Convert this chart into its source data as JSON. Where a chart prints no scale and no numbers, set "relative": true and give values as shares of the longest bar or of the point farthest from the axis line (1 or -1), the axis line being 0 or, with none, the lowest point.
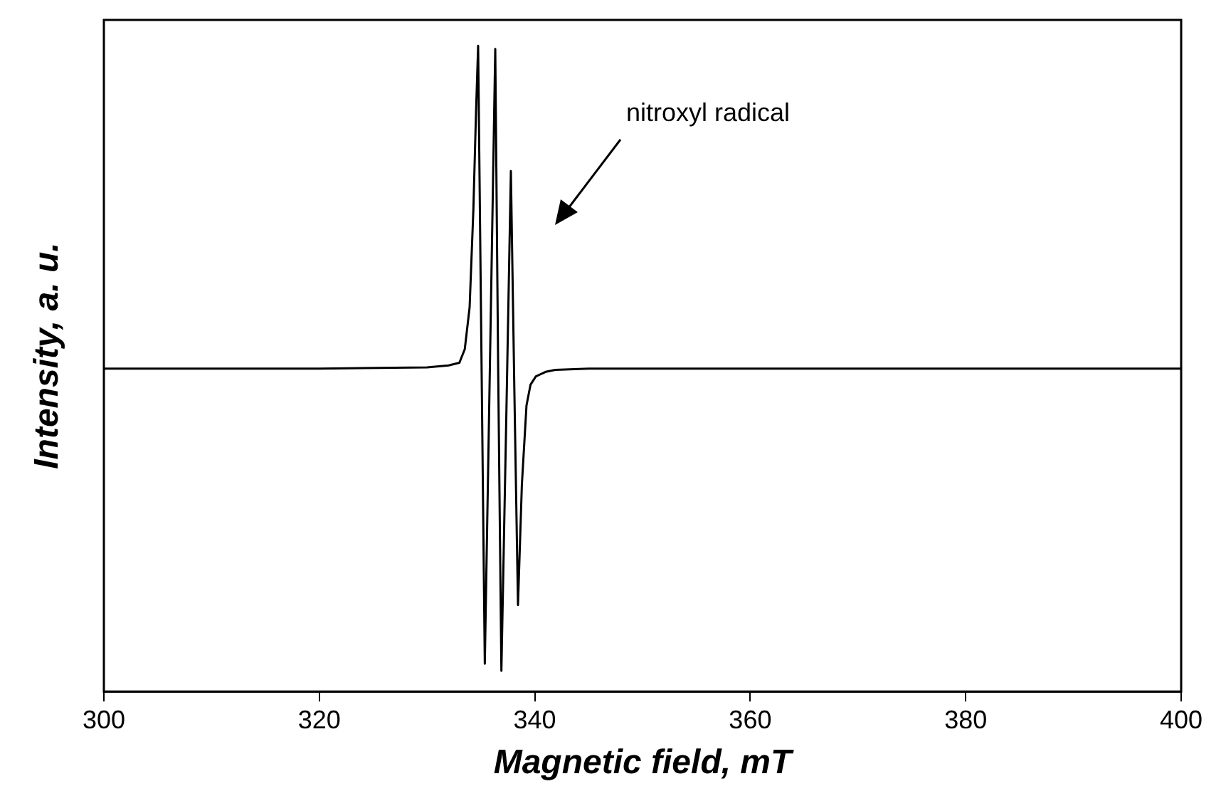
{
  "chart_data": {
    "type": "line",
    "relative": true,
    "xlabel": "Magnetic field, mT",
    "ylabel": "Intensity, a. u.",
    "annotations": [
      "nitroxyl radical"
    ],
    "xlim": [
      300,
      400
    ],
    "xticks": [
      300,
      320,
      340,
      360,
      380,
      400
    ],
    "grid": false,
    "legend": false,
    "marker": "none",
    "line_style": "solid",
    "series": [
      {
        "color": "#000000",
        "x": [
          300,
          320,
          330,
          332,
          333,
          333.5,
          333.95,
          334.3,
          334.55,
          334.74,
          335.05,
          335.36,
          335.85,
          336.33,
          336.6,
          336.9,
          337.35,
          337.78,
          338.1,
          338.44,
          338.8,
          339.23,
          339.6,
          340.1,
          341,
          341.9,
          345,
          350,
          400
        ],
        "values": [
          0.5,
          0.5,
          0.502,
          0.505,
          0.509,
          0.53,
          0.595,
          0.747,
          0.9,
          1.0,
          0.52,
          0.043,
          0.52,
          0.995,
          0.5,
          0.032,
          0.42,
          0.806,
          0.47,
          0.134,
          0.32,
          0.443,
          0.475,
          0.488,
          0.495,
          0.498,
          0.5,
          0.5,
          0.5
        ]
      }
    ]
  }
}
